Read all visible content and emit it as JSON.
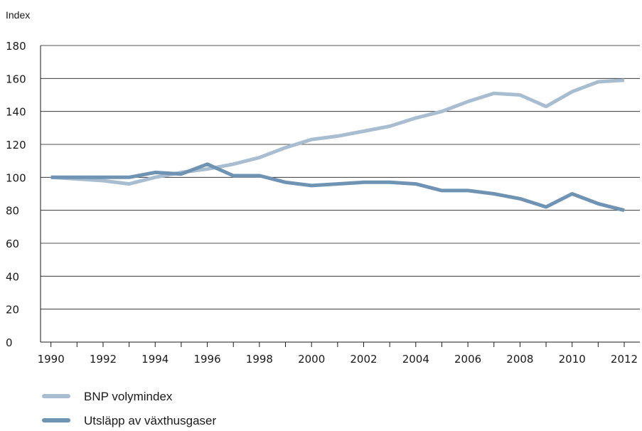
{
  "chart_data": {
    "type": "line",
    "title": "",
    "xlabel": "",
    "ylabel": "Index",
    "x": [
      1990,
      1991,
      1992,
      1993,
      1994,
      1995,
      1996,
      1997,
      1998,
      1999,
      2000,
      2001,
      2002,
      2003,
      2004,
      2005,
      2006,
      2007,
      2008,
      2009,
      2010,
      2011,
      2012
    ],
    "x_tick_labels": [
      "1990",
      "1992",
      "1994",
      "1996",
      "1998",
      "2000",
      "2002",
      "2004",
      "2006",
      "2008",
      "2010",
      "2012"
    ],
    "x_ticks": [
      1990,
      1992,
      1994,
      1996,
      1998,
      2000,
      2002,
      2004,
      2006,
      2008,
      2010,
      2012
    ],
    "y_ticks": [
      0,
      20,
      40,
      60,
      80,
      100,
      120,
      140,
      160,
      180
    ],
    "y_tick_labels": [
      "0",
      "20",
      "40",
      "60",
      "80",
      "100",
      "120",
      "140",
      "160",
      "180"
    ],
    "xlim": [
      1989.6,
      2012.6
    ],
    "ylim": [
      0,
      180
    ],
    "grid": true,
    "legend_position": "bottom-left",
    "series": [
      {
        "name": "BNP volymindex",
        "color": "#a8bdd0",
        "values": [
          100,
          99,
          98,
          96,
          100,
          103,
          105,
          108,
          112,
          118,
          123,
          125,
          128,
          131,
          136,
          140,
          146,
          151,
          150,
          143,
          152,
          158,
          159
        ]
      },
      {
        "name": "Utsläpp av växthusgaser",
        "color": "#6f93b3",
        "values": [
          100,
          100,
          100,
          100,
          103,
          102,
          108,
          101,
          101,
          97,
          95,
          96,
          97,
          97,
          96,
          92,
          92,
          90,
          87,
          82,
          90,
          84,
          80
        ]
      }
    ]
  }
}
